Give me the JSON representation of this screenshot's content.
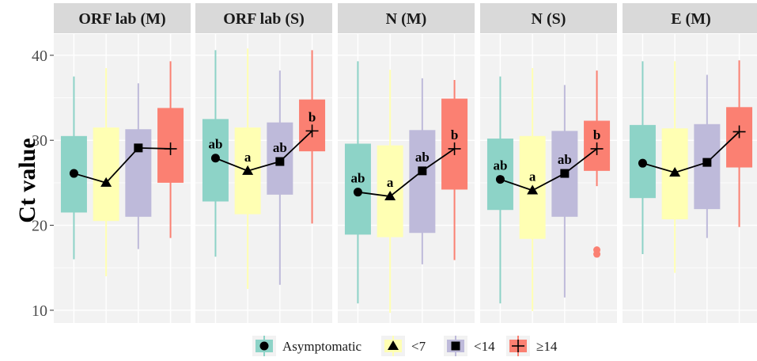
{
  "chart_data": {
    "type": "box",
    "ylabel": "Ct value",
    "xlabel": "",
    "ylim": [
      8.5,
      42.5
    ],
    "yticks": [
      10,
      20,
      30,
      40
    ],
    "groups": [
      {
        "name": "Asymptomatic",
        "color": "#8dd3c7",
        "marker": "circle"
      },
      {
        "name": "<7",
        "color": "#ffffb3",
        "marker": "triangle"
      },
      {
        "name": "<14",
        "color": "#bebada",
        "marker": "square"
      },
      {
        "name": "≥14",
        "color": "#fb8072",
        "marker": "plus"
      }
    ],
    "panels": [
      {
        "title": "ORF lab (M)",
        "boxes": [
          {
            "whisker_low": 16,
            "q1": 21.5,
            "q3": 30.5,
            "whisker_high": 37.5,
            "mean": 26.1,
            "label": ""
          },
          {
            "whisker_low": 14,
            "q1": 20.5,
            "q3": 31.5,
            "whisker_high": 38.5,
            "mean": 25,
            "label": ""
          },
          {
            "whisker_low": 17.2,
            "q1": 21,
            "q3": 31.3,
            "whisker_high": 36.7,
            "mean": 29.1,
            "label": ""
          },
          {
            "whisker_low": 18.5,
            "q1": 25,
            "q3": 33.8,
            "whisker_high": 39.3,
            "mean": 29,
            "label": ""
          }
        ],
        "outliers": []
      },
      {
        "title": "ORF lab (S)",
        "boxes": [
          {
            "whisker_low": 16.3,
            "q1": 22.8,
            "q3": 32.5,
            "whisker_high": 40.6,
            "mean": 27.9,
            "label": "ab"
          },
          {
            "whisker_low": 12.5,
            "q1": 21.3,
            "q3": 31.5,
            "whisker_high": 40.8,
            "mean": 26.4,
            "label": "a"
          },
          {
            "whisker_low": 13,
            "q1": 23.6,
            "q3": 32.1,
            "whisker_high": 38.2,
            "mean": 27.5,
            "label": "ab"
          },
          {
            "whisker_low": 20.2,
            "q1": 28.7,
            "q3": 34.8,
            "whisker_high": 40.6,
            "mean": 31.1,
            "label": "b"
          }
        ],
        "outliers": []
      },
      {
        "title": "N (M)",
        "boxes": [
          {
            "whisker_low": 10.8,
            "q1": 18.9,
            "q3": 29.6,
            "whisker_high": 39.3,
            "mean": 23.9,
            "label": "ab"
          },
          {
            "whisker_low": 9.7,
            "q1": 18.6,
            "q3": 29.4,
            "whisker_high": 38.3,
            "mean": 23.4,
            "label": "a"
          },
          {
            "whisker_low": 15.4,
            "q1": 19.1,
            "q3": 31.2,
            "whisker_high": 37.3,
            "mean": 26.4,
            "label": "ab"
          },
          {
            "whisker_low": 15.9,
            "q1": 24.2,
            "q3": 34.9,
            "whisker_high": 37.1,
            "mean": 29,
            "label": "b"
          }
        ],
        "outliers": []
      },
      {
        "title": "N (S)",
        "boxes": [
          {
            "whisker_low": 10.8,
            "q1": 21.8,
            "q3": 30.2,
            "whisker_high": 37.5,
            "mean": 25.4,
            "label": "ab"
          },
          {
            "whisker_low": 9.9,
            "q1": 18.4,
            "q3": 30.5,
            "whisker_high": 38.5,
            "mean": 24.1,
            "label": "a"
          },
          {
            "whisker_low": 11.5,
            "q1": 21,
            "q3": 31.1,
            "whisker_high": 36.5,
            "mean": 26.1,
            "label": "ab"
          },
          {
            "whisker_low": 24.6,
            "q1": 26.4,
            "q3": 32.3,
            "whisker_high": 38.2,
            "mean": 29,
            "label": "b"
          }
        ],
        "outliers": [
          {
            "group_index": 3,
            "value": 17.1
          },
          {
            "group_index": 3,
            "value": 16.6
          }
        ]
      },
      {
        "title": "E (M)",
        "boxes": [
          {
            "whisker_low": 16.6,
            "q1": 23.2,
            "q3": 31.8,
            "whisker_high": 39.3,
            "mean": 27.3,
            "label": ""
          },
          {
            "whisker_low": 14.4,
            "q1": 20.7,
            "q3": 31.4,
            "whisker_high": 39.3,
            "mean": 26.2,
            "label": ""
          },
          {
            "whisker_low": 18.5,
            "q1": 21.9,
            "q3": 31.9,
            "whisker_high": 37.7,
            "mean": 27.4,
            "label": ""
          },
          {
            "whisker_low": 19.8,
            "q1": 26.8,
            "q3": 33.9,
            "whisker_high": 39.4,
            "mean": 31,
            "label": ""
          }
        ],
        "outliers": []
      }
    ],
    "legend": [
      "Asymptomatic",
      "<7",
      "<14",
      "≥14"
    ],
    "legend_position": "bottom",
    "grid": true
  }
}
